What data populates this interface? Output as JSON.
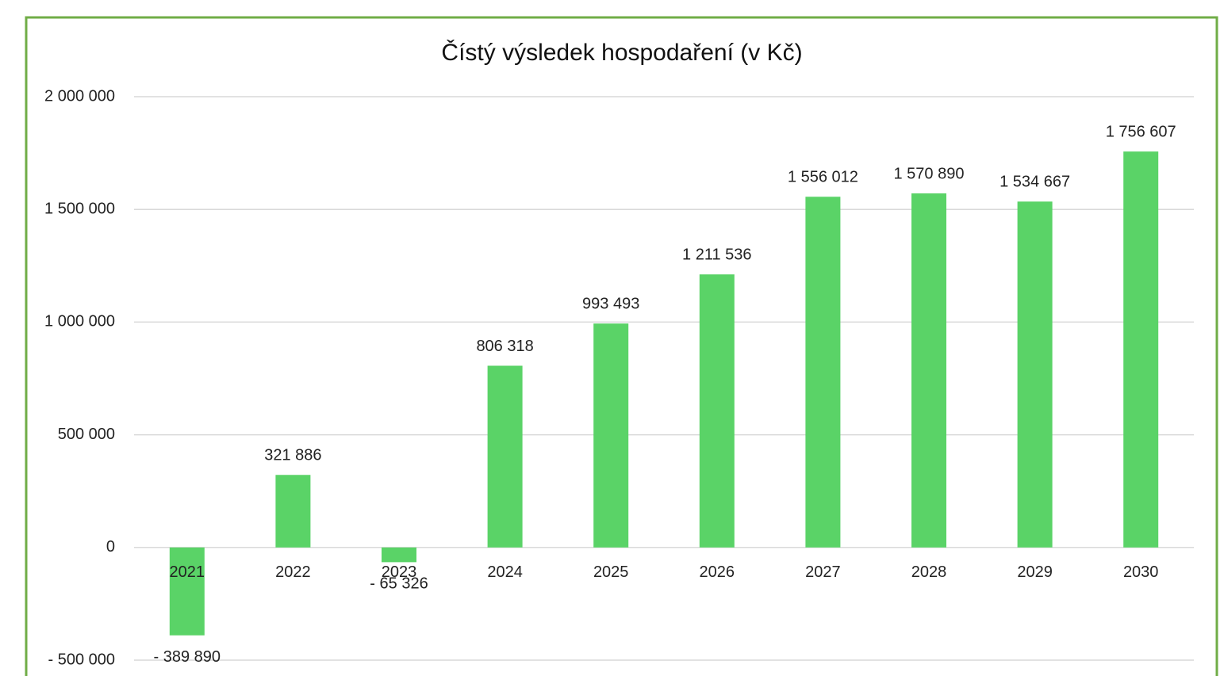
{
  "chart_data": {
    "type": "bar",
    "title": "Čístý výsledek hospodaření (v Kč)",
    "categories": [
      "2021",
      "2022",
      "2023",
      "2024",
      "2025",
      "2026",
      "2027",
      "2028",
      "2029",
      "2030"
    ],
    "values": [
      -389890,
      321886,
      -65326,
      806318,
      993493,
      1211536,
      1556012,
      1570890,
      1534667,
      1756607
    ],
    "value_labels": [
      "- 389 890",
      "321 886",
      "- 65 326",
      "806 318",
      "993 493",
      "1 211 536",
      "1 556 012",
      "1 570 890",
      "1 534 667",
      "1 756 607"
    ],
    "color": "#5ad367",
    "ylim": [
      -500000,
      2000000
    ],
    "yticks": [
      {
        "value": -500000,
        "label": "- 500 000"
      },
      0,
      {
        "value": 500000,
        "label": "500 000"
      },
      {
        "value": 1000000,
        "label": "1 000 000"
      },
      {
        "value": 1500000,
        "label": "1 500 000"
      },
      {
        "value": 2000000,
        "label": "2 000 000"
      }
    ],
    "grid": true
  }
}
